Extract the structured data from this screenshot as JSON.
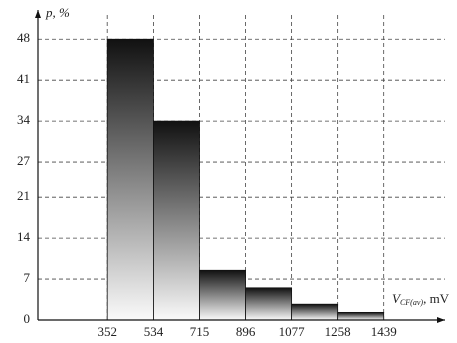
{
  "chart_data": {
    "type": "histogram",
    "ylabel": "p, %",
    "xlabel": "V",
    "xlabel_sub": "CF(av)",
    "xlabel_unit": ", mV",
    "bins": [
      352,
      534,
      715,
      896,
      1077,
      1258,
      1439
    ],
    "values": [
      48,
      34,
      8.5,
      5.5,
      2.7,
      1.3
    ],
    "xlim": [
      80,
      1680
    ],
    "ylim": [
      0,
      53
    ],
    "xticks": [
      352,
      534,
      715,
      896,
      1077,
      1258,
      1439
    ],
    "yticks": [
      0,
      7,
      14,
      21,
      27,
      34,
      41,
      48
    ],
    "grid": true
  }
}
